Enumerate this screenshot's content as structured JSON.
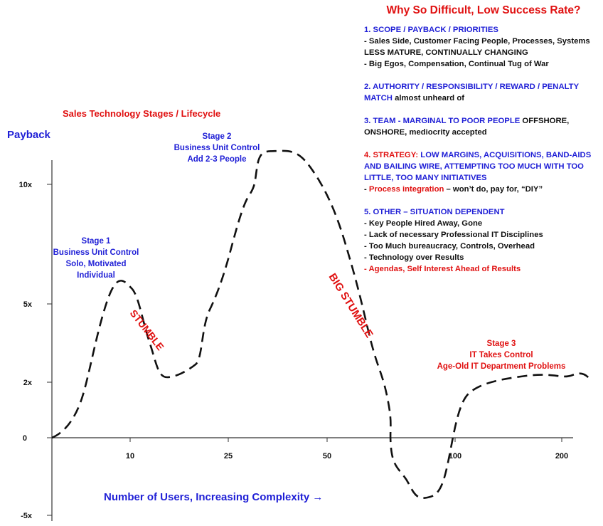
{
  "diagram_title": "Sales Technology Stages / Lifecycle",
  "y_axis_label": "Payback",
  "x_axis_label": "Number of Users, Increasing Complexity →",
  "y_ticks": [
    "10x",
    "5x",
    "2x",
    "0",
    "-5x"
  ],
  "x_ticks": [
    "10",
    "25",
    "50",
    "100",
    "200"
  ],
  "stages": {
    "stage1": [
      "Stage 1",
      "Business Unit Control",
      "Solo, Motivated",
      "Individual"
    ],
    "stage2": [
      "Stage 2",
      "Business Unit Control",
      "Add 2-3 People"
    ],
    "stage3": [
      "Stage 3",
      "IT Takes Control",
      "Age-Old IT Department Problems"
    ]
  },
  "annotations": {
    "stumble": "STUMBLE",
    "big_stumble": "BIG STUMBLE"
  },
  "colors": {
    "blue": "#1f1fd6",
    "red": "#e01010",
    "black": "#111111"
  },
  "panel": {
    "title": "Why So Difficult, Low Success Rate?",
    "s1_head": "1.  SCOPE / PAYBACK / PRIORITIES",
    "s1_l1": "- Sales Side, Customer Facing People, Processes, Systems",
    "s1_l2": "LESS MATURE, CONTINUALLY CHANGING",
    "s1_l3": "- Big Egos, Compensation, Continual Tug of War",
    "s2_head": "2.  AUTHORITY / RESPONSIBILITY / REWARD / PENALTY MATCH",
    "s2_tail": " almost unheard of",
    "s3_head": "3.  TEAM - MARGINAL TO POOR PEOPLE",
    "s3_tail": " OFFSHORE, ONSHORE, mediocrity accepted",
    "s4_red": "4.  STRATEGY:",
    "s4_blue": "  LOW MARGINS, ACQUISITIONS, BAND-AIDS AND BAILING WIRE,  ATTEMPTING TOO MUCH WITH TOO LITTLE, TOO MANY INITIATIVES",
    "s4_l1_dash": "- ",
    "s4_l1_red": "Process integration",
    "s4_l1_tail": " – won’t do, pay for, “DIY”",
    "s5_head": "5.  OTHER – SITUATION DEPENDENT",
    "s5_items": [
      "- Key People Hired Away, Gone",
      "- Lack of necessary Professional IT Disciplines",
      "- Too Much bureaucracy, Controls, Overhead",
      "- Technology over Results"
    ],
    "s5_red": "- Agendas, Self Interest Ahead of Results"
  }
}
